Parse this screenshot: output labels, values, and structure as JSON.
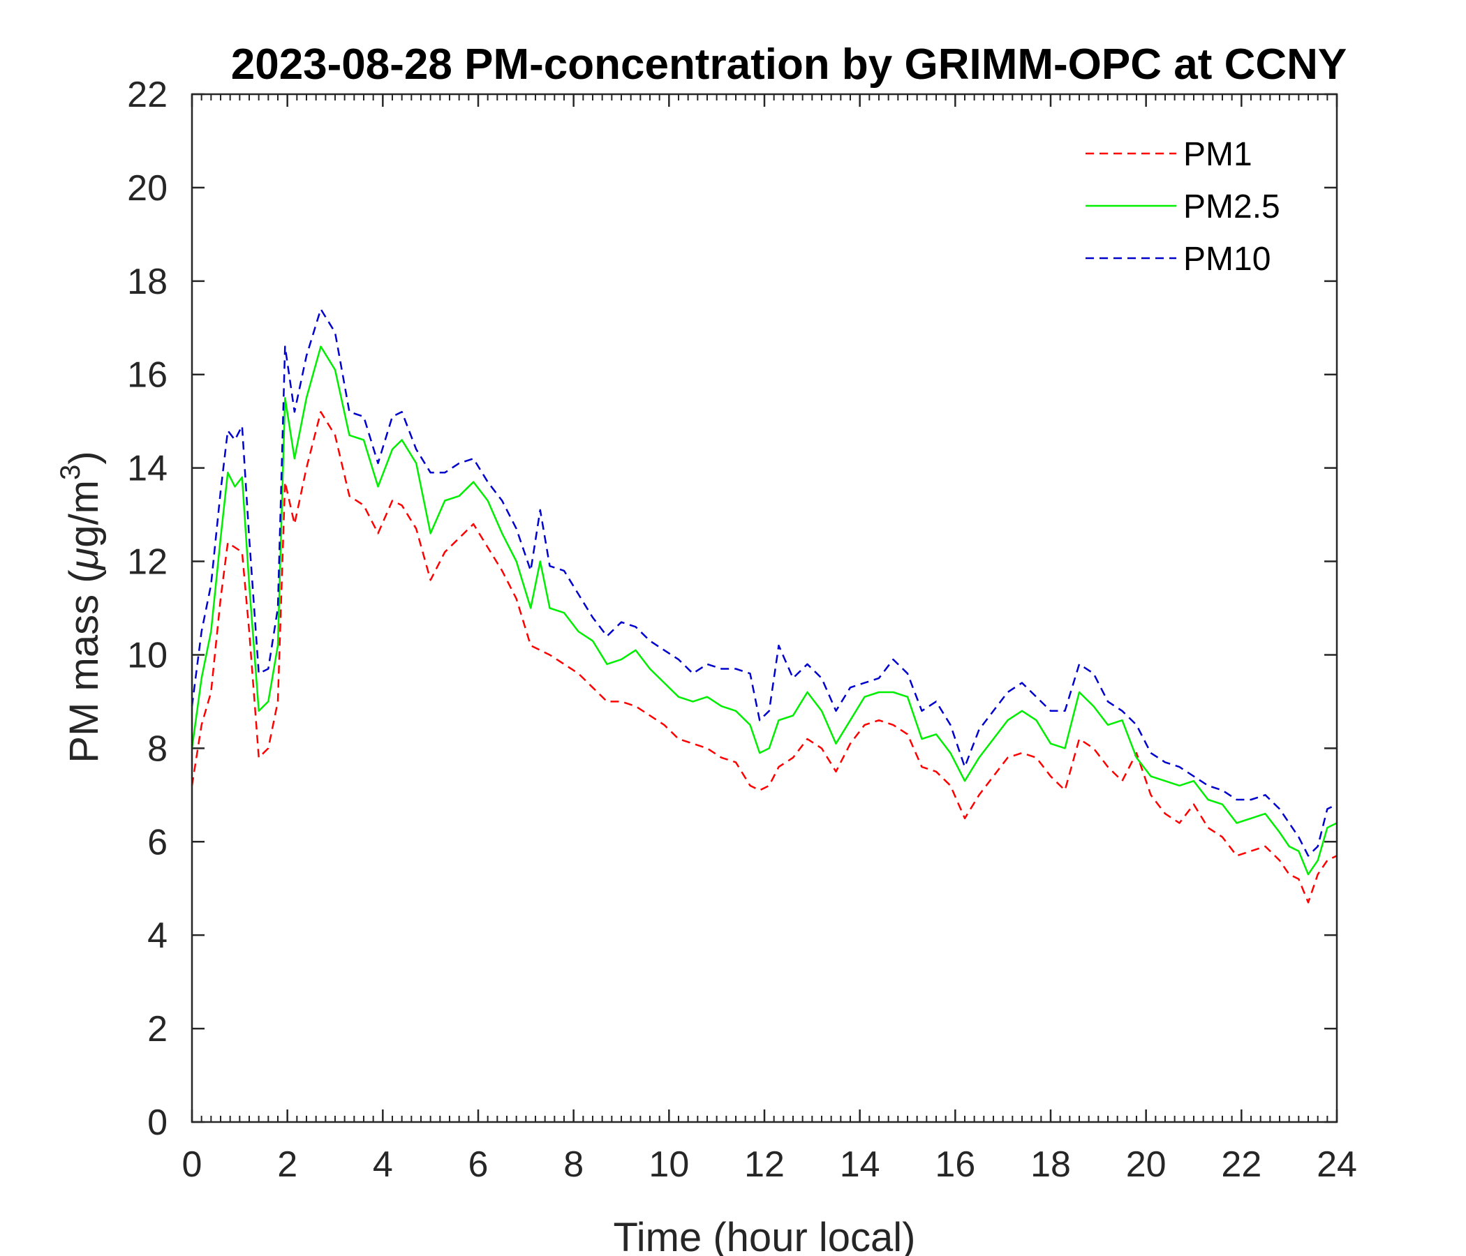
{
  "chart_data": {
    "type": "line",
    "title": "2023-08-28 PM-concentration by GRIMM-OPC at CCNY",
    "xlabel": "Time (hour local)",
    "ylabel_main": "PM mass (",
    "ylabel_mu": "μ",
    "ylabel_unit": "g/m",
    "ylabel_sup": "3",
    "ylabel_close": ")",
    "xlim": [
      0,
      24
    ],
    "ylim": [
      0,
      22
    ],
    "x_ticks": [
      "0",
      "2",
      "4",
      "6",
      "8",
      "10",
      "12",
      "14",
      "16",
      "18",
      "20",
      "22",
      "24"
    ],
    "y_ticks": [
      "0",
      "2",
      "4",
      "6",
      "8",
      "10",
      "12",
      "14",
      "16",
      "18",
      "20",
      "22"
    ],
    "legend_position": "top-right",
    "x": [
      0,
      0.2,
      0.4,
      0.6,
      0.75,
      0.9,
      1.05,
      1.2,
      1.4,
      1.6,
      1.8,
      1.95,
      2.15,
      2.4,
      2.7,
      3.0,
      3.3,
      3.6,
      3.9,
      4.2,
      4.4,
      4.7,
      5.0,
      5.3,
      5.6,
      5.9,
      6.2,
      6.5,
      6.8,
      7.1,
      7.3,
      7.5,
      7.8,
      8.1,
      8.4,
      8.7,
      9.0,
      9.3,
      9.6,
      9.9,
      10.2,
      10.5,
      10.8,
      11.1,
      11.4,
      11.7,
      11.9,
      12.1,
      12.3,
      12.6,
      12.9,
      13.2,
      13.5,
      13.8,
      14.1,
      14.4,
      14.7,
      15.0,
      15.3,
      15.6,
      15.9,
      16.2,
      16.5,
      16.8,
      17.1,
      17.4,
      17.7,
      18.0,
      18.3,
      18.6,
      18.9,
      19.2,
      19.5,
      19.8,
      20.1,
      20.4,
      20.7,
      21.0,
      21.3,
      21.6,
      21.9,
      22.2,
      22.5,
      22.8,
      23.0,
      23.2,
      23.4,
      23.6,
      23.8,
      24.0
    ],
    "series": [
      {
        "name": "PM1",
        "color": "#ff0000",
        "style": "dashed",
        "values": [
          7.2,
          8.5,
          9.2,
          11.2,
          12.4,
          12.3,
          12.2,
          10.5,
          7.8,
          8.0,
          9.0,
          13.7,
          12.8,
          14.0,
          15.2,
          14.7,
          13.4,
          13.2,
          12.6,
          13.3,
          13.2,
          12.7,
          11.6,
          12.2,
          12.5,
          12.8,
          12.3,
          11.8,
          11.2,
          10.2,
          10.1,
          10.0,
          9.8,
          9.6,
          9.3,
          9.0,
          9.0,
          8.9,
          8.7,
          8.5,
          8.2,
          8.1,
          8.0,
          7.8,
          7.7,
          7.2,
          7.1,
          7.2,
          7.6,
          7.8,
          8.2,
          8.0,
          7.5,
          8.1,
          8.5,
          8.6,
          8.5,
          8.3,
          7.6,
          7.5,
          7.2,
          6.5,
          7.0,
          7.4,
          7.8,
          7.9,
          7.8,
          7.4,
          7.1,
          8.2,
          8.0,
          7.6,
          7.3,
          7.9,
          7.0,
          6.6,
          6.4,
          6.8,
          6.3,
          6.1,
          5.7,
          5.8,
          5.9,
          5.6,
          5.3,
          5.2,
          4.7,
          5.3,
          5.6,
          5.7
        ]
      },
      {
        "name": "PM2.5",
        "color": "#00ee00",
        "style": "solid",
        "values": [
          8.0,
          9.5,
          10.5,
          12.5,
          13.9,
          13.6,
          13.8,
          11.5,
          8.8,
          9.0,
          10.2,
          15.5,
          14.2,
          15.5,
          16.6,
          16.1,
          14.7,
          14.6,
          13.6,
          14.4,
          14.6,
          14.1,
          12.6,
          13.3,
          13.4,
          13.7,
          13.3,
          12.6,
          12.0,
          11.0,
          12.0,
          11.0,
          10.9,
          10.5,
          10.3,
          9.8,
          9.9,
          10.1,
          9.7,
          9.4,
          9.1,
          9.0,
          9.1,
          8.9,
          8.8,
          8.5,
          7.9,
          8.0,
          8.6,
          8.7,
          9.2,
          8.8,
          8.1,
          8.6,
          9.1,
          9.2,
          9.2,
          9.1,
          8.2,
          8.3,
          7.9,
          7.3,
          7.8,
          8.2,
          8.6,
          8.8,
          8.6,
          8.1,
          8.0,
          9.2,
          8.9,
          8.5,
          8.6,
          7.8,
          7.4,
          7.3,
          7.2,
          7.3,
          6.9,
          6.8,
          6.4,
          6.5,
          6.6,
          6.2,
          5.9,
          5.8,
          5.3,
          5.6,
          6.3,
          6.4
        ]
      },
      {
        "name": "PM10",
        "color": "#0000cc",
        "style": "dashed",
        "values": [
          8.9,
          10.5,
          11.5,
          13.5,
          14.8,
          14.6,
          14.9,
          12.5,
          9.6,
          9.7,
          11.0,
          16.6,
          15.2,
          16.4,
          17.4,
          16.9,
          15.2,
          15.1,
          14.1,
          15.1,
          15.2,
          14.4,
          13.9,
          13.9,
          14.1,
          14.2,
          13.7,
          13.3,
          12.7,
          11.8,
          13.1,
          11.9,
          11.8,
          11.3,
          10.8,
          10.4,
          10.7,
          10.6,
          10.3,
          10.1,
          9.9,
          9.6,
          9.8,
          9.7,
          9.7,
          9.6,
          8.6,
          8.8,
          10.2,
          9.5,
          9.8,
          9.5,
          8.8,
          9.3,
          9.4,
          9.5,
          9.9,
          9.6,
          8.8,
          9.0,
          8.5,
          7.6,
          8.4,
          8.8,
          9.2,
          9.4,
          9.1,
          8.8,
          8.8,
          9.8,
          9.6,
          9.0,
          8.8,
          8.5,
          7.9,
          7.7,
          7.6,
          7.4,
          7.2,
          7.1,
          6.9,
          6.9,
          7.0,
          6.7,
          6.4,
          6.1,
          5.7,
          5.9,
          6.7,
          6.8
        ]
      }
    ]
  }
}
